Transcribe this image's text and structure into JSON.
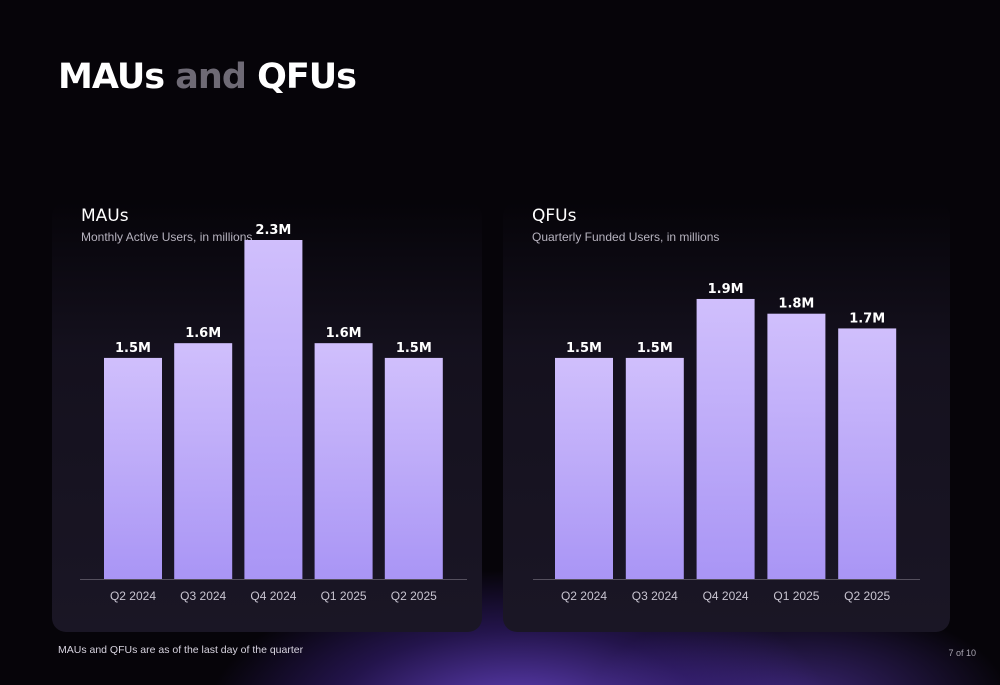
{
  "slide": {
    "title_part1": "MAUs",
    "title_joiner": " and ",
    "title_part2": "QFUs",
    "footnote": "MAUs and QFUs are as of the last day of the quarter",
    "page_number": "7 of 10",
    "accent_color": "#c7b4fb"
  },
  "chart_data": [
    {
      "type": "bar",
      "title": "MAUs",
      "subtitle": "Monthly Active Users, in millions",
      "categories": [
        "Q2 2024",
        "Q3 2024",
        "Q4 2024",
        "Q1 2025",
        "Q2 2025"
      ],
      "values": [
        1.5,
        1.6,
        2.3,
        1.6,
        1.5
      ],
      "data_labels": [
        "1.5M",
        "1.6M",
        "2.3M",
        "1.6M",
        "1.5M"
      ],
      "ylim": [
        0,
        2.3
      ],
      "grid": false,
      "legend": "none"
    },
    {
      "type": "bar",
      "title": "QFUs",
      "subtitle": "Quarterly Funded Users, in millions",
      "categories": [
        "Q2 2024",
        "Q3 2024",
        "Q4 2024",
        "Q1 2025",
        "Q2 2025"
      ],
      "values": [
        1.5,
        1.5,
        1.9,
        1.8,
        1.7
      ],
      "data_labels": [
        "1.5M",
        "1.5M",
        "1.9M",
        "1.8M",
        "1.7M"
      ],
      "ylim": [
        0,
        2.3
      ],
      "grid": false,
      "legend": "none"
    }
  ]
}
